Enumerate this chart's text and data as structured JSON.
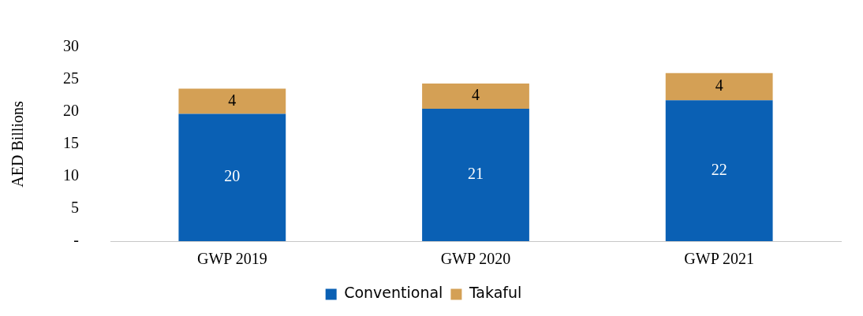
{
  "chart_data": {
    "type": "bar",
    "stacked": true,
    "ylabel": "AED Billions",
    "categories": [
      "GWP 2019",
      "GWP 2020",
      "GWP 2021"
    ],
    "series": [
      {
        "name": "Conventional",
        "color": "#0a60b4",
        "values": [
          19.7,
          20.5,
          21.8
        ],
        "value_labels": [
          "20",
          "21",
          "22"
        ]
      },
      {
        "name": "Takaful",
        "color": "#d4a055",
        "values": [
          3.9,
          3.9,
          4.2
        ],
        "value_labels": [
          "4",
          "4",
          "4"
        ]
      }
    ],
    "ylim": [
      0,
      30
    ],
    "yticks": [
      {
        "value": 0,
        "label": "-"
      },
      5,
      10,
      15,
      20,
      25,
      30
    ],
    "grid": false,
    "legend": "bottom"
  }
}
